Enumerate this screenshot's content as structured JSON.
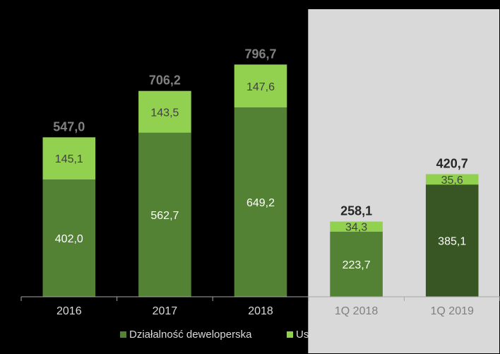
{
  "chart_data": {
    "type": "bar",
    "stacked": true,
    "categories": [
      "2016",
      "2017",
      "2018",
      "1Q 2018",
      "1Q 2019"
    ],
    "series": [
      {
        "name": "Działalność deweloperska",
        "values": [
          402.0,
          562.7,
          649.2,
          223.7,
          385.1
        ],
        "labels": [
          "402,0",
          "562,7",
          "649,2",
          "223,7",
          "385,1"
        ],
        "color": "#548235"
      },
      {
        "name": "Usługi najmu",
        "values": [
          145.1,
          143.5,
          147.6,
          34.3,
          35.6
        ],
        "labels": [
          "145,1",
          "143,5",
          "147,6",
          "34,3",
          "35,6"
        ],
        "color": "#92d050"
      }
    ],
    "totals": [
      547.0,
      706.2,
      796.7,
      258.1,
      420.7
    ],
    "total_labels": [
      "547,0",
      "706,2",
      "796,7",
      "258,1",
      "420,7"
    ],
    "highlight_categories": [
      "1Q 2018",
      "1Q 2019"
    ],
    "highlight_background": "#d9d9d9",
    "highlight_last_bar_color": "#375623",
    "ylim": [
      0,
      800
    ],
    "legend_position": "bottom",
    "title": "",
    "xlabel": "",
    "ylabel": ""
  }
}
